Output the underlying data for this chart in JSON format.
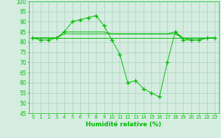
{
  "x": [
    0,
    1,
    2,
    3,
    4,
    5,
    6,
    7,
    8,
    9,
    10,
    11,
    12,
    13,
    14,
    15,
    16,
    17,
    18,
    19,
    20,
    21,
    22,
    23
  ],
  "main_y": [
    82,
    81,
    81,
    82,
    85,
    90,
    91,
    92,
    93,
    88,
    81,
    74,
    60,
    61,
    57,
    55,
    53,
    70,
    85,
    81,
    81,
    81,
    82,
    82
  ],
  "flat_lines": [
    [
      82,
      82,
      82,
      82,
      82,
      82,
      82,
      82,
      82,
      82,
      82,
      82,
      82,
      82,
      82,
      82,
      82,
      82,
      82,
      82,
      82,
      82,
      82,
      82
    ],
    [
      82,
      82,
      82,
      82,
      85,
      85,
      85,
      85,
      85,
      85,
      84,
      84,
      84,
      84,
      84,
      84,
      84,
      84,
      85,
      82,
      82,
      82,
      82,
      82
    ],
    [
      82,
      82,
      82,
      82,
      84,
      84,
      84,
      84,
      84,
      84,
      84,
      84,
      84,
      84,
      84,
      84,
      84,
      84,
      84,
      82,
      81,
      81,
      82,
      82
    ]
  ],
  "line_color": "#00bb00",
  "marker": "+",
  "marker_size": 4,
  "bg_color": "#d4ede0",
  "grid_color": "#aacfbb",
  "xlabel": "Humidité relative (%)",
  "ylim": [
    45,
    100
  ],
  "xlim": [
    -0.5,
    23.5
  ],
  "yticks": [
    45,
    50,
    55,
    60,
    65,
    70,
    75,
    80,
    85,
    90,
    95,
    100
  ],
  "xticks": [
    0,
    1,
    2,
    3,
    4,
    5,
    6,
    7,
    8,
    9,
    10,
    11,
    12,
    13,
    14,
    15,
    16,
    17,
    18,
    19,
    20,
    21,
    22,
    23
  ]
}
